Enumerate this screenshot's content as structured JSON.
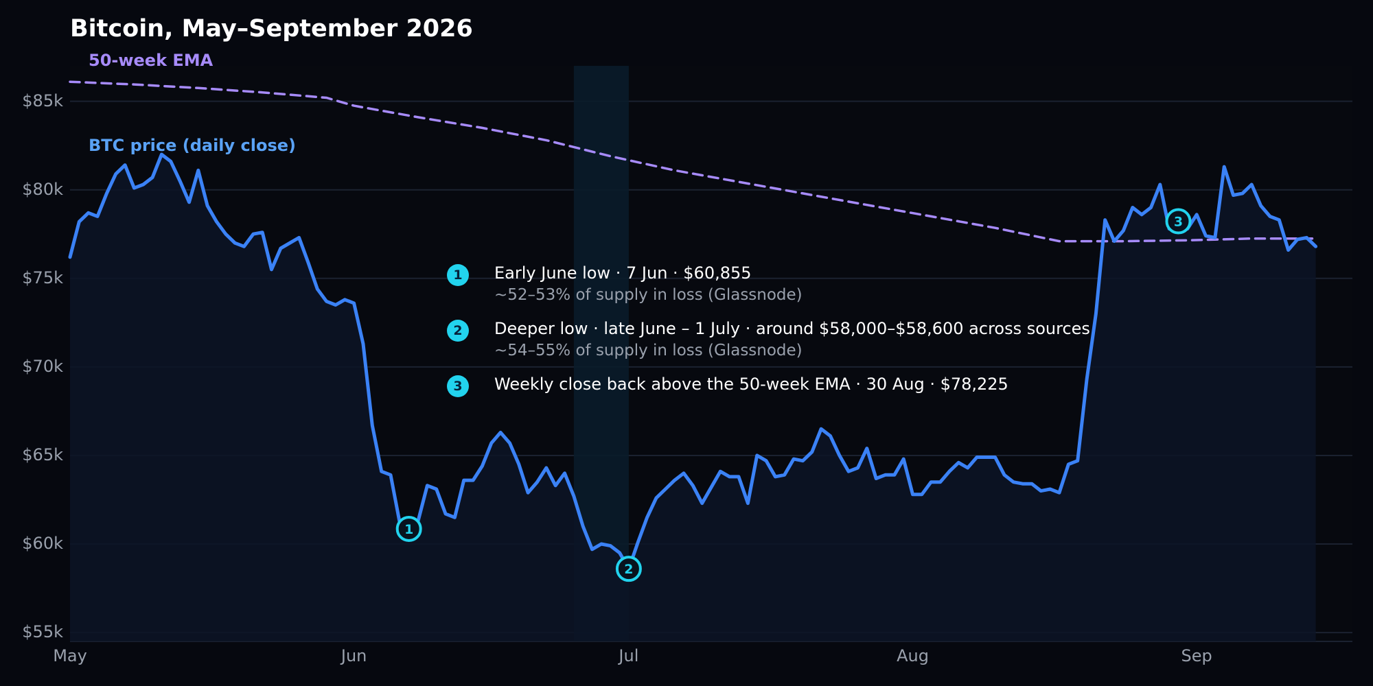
{
  "colors": {
    "background": "#06080f",
    "grid": "#1b2230",
    "btc_line": "#3b82f6",
    "btc_fill": "#0c1426",
    "ema_line": "#a78bfa",
    "highlight_band": "#0a1c2a",
    "marker": "#22d3ee",
    "text": "#ffffff",
    "muted_text": "#9aa1ad"
  },
  "chart_data": {
    "type": "line",
    "title": "Bitcoin, May–September 2026",
    "xlabel": "",
    "ylabel": "",
    "x_axis": {
      "type": "date",
      "range": [
        "2026-05-01",
        "2026-09-17"
      ],
      "ticks": [
        {
          "date": "2026-05-01",
          "label": "May"
        },
        {
          "date": "2026-06-01",
          "label": "Jun"
        },
        {
          "date": "2026-07-01",
          "label": "Jul"
        },
        {
          "date": "2026-08-01",
          "label": "Aug"
        },
        {
          "date": "2026-09-01",
          "label": "Sep"
        }
      ]
    },
    "y_axis": {
      "range": [
        54500,
        87000
      ],
      "ticks": [
        {
          "value": 55000,
          "label": "$55k"
        },
        {
          "value": 60000,
          "label": "$60k"
        },
        {
          "value": 65000,
          "label": "$65k"
        },
        {
          "value": 70000,
          "label": "$70k"
        },
        {
          "value": 75000,
          "label": "$75k"
        },
        {
          "value": 80000,
          "label": "$80k"
        },
        {
          "value": 85000,
          "label": "$85k"
        }
      ]
    },
    "grid": "horizontal",
    "highlight_band": {
      "start": "2026-06-25",
      "end": "2026-07-01"
    },
    "series": [
      {
        "name": "BTC price (daily close)",
        "style": "solid",
        "area_fill": true,
        "points": [
          [
            "2026-05-01",
            76200
          ],
          [
            "2026-05-02",
            78200
          ],
          [
            "2026-05-03",
            78700
          ],
          [
            "2026-05-04",
            78500
          ],
          [
            "2026-05-05",
            79800
          ],
          [
            "2026-05-06",
            80900
          ],
          [
            "2026-05-07",
            81400
          ],
          [
            "2026-05-08",
            80100
          ],
          [
            "2026-05-09",
            80300
          ],
          [
            "2026-05-10",
            80700
          ],
          [
            "2026-05-11",
            82000
          ],
          [
            "2026-05-12",
            81600
          ],
          [
            "2026-05-13",
            80500
          ],
          [
            "2026-05-14",
            79300
          ],
          [
            "2026-05-15",
            81100
          ],
          [
            "2026-05-16",
            79100
          ],
          [
            "2026-05-17",
            78200
          ],
          [
            "2026-05-18",
            77500
          ],
          [
            "2026-05-19",
            77000
          ],
          [
            "2026-05-20",
            76800
          ],
          [
            "2026-05-21",
            77500
          ],
          [
            "2026-05-22",
            77600
          ],
          [
            "2026-05-23",
            75500
          ],
          [
            "2026-05-24",
            76700
          ],
          [
            "2026-05-25",
            77000
          ],
          [
            "2026-05-26",
            77300
          ],
          [
            "2026-05-27",
            75900
          ],
          [
            "2026-05-28",
            74400
          ],
          [
            "2026-05-29",
            73700
          ],
          [
            "2026-05-30",
            73500
          ],
          [
            "2026-05-31",
            73800
          ],
          [
            "2026-06-01",
            73600
          ],
          [
            "2026-06-02",
            71300
          ],
          [
            "2026-06-03",
            66700
          ],
          [
            "2026-06-04",
            64100
          ],
          [
            "2026-06-05",
            63900
          ],
          [
            "2026-06-06",
            61200
          ],
          [
            "2026-06-07",
            60855
          ],
          [
            "2026-06-08",
            61300
          ],
          [
            "2026-06-09",
            63300
          ],
          [
            "2026-06-10",
            63100
          ],
          [
            "2026-06-11",
            61700
          ],
          [
            "2026-06-12",
            61500
          ],
          [
            "2026-06-13",
            63600
          ],
          [
            "2026-06-14",
            63600
          ],
          [
            "2026-06-15",
            64400
          ],
          [
            "2026-06-16",
            65700
          ],
          [
            "2026-06-17",
            66300
          ],
          [
            "2026-06-18",
            65700
          ],
          [
            "2026-06-19",
            64500
          ],
          [
            "2026-06-20",
            62900
          ],
          [
            "2026-06-21",
            63500
          ],
          [
            "2026-06-22",
            64300
          ],
          [
            "2026-06-23",
            63300
          ],
          [
            "2026-06-24",
            64000
          ],
          [
            "2026-06-25",
            62700
          ],
          [
            "2026-06-26",
            61000
          ],
          [
            "2026-06-27",
            59700
          ],
          [
            "2026-06-28",
            60000
          ],
          [
            "2026-06-29",
            59900
          ],
          [
            "2026-06-30",
            59500
          ],
          [
            "2026-07-01",
            58600
          ],
          [
            "2026-07-02",
            60100
          ],
          [
            "2026-07-03",
            61500
          ],
          [
            "2026-07-04",
            62600
          ],
          [
            "2026-07-05",
            63100
          ],
          [
            "2026-07-06",
            63600
          ],
          [
            "2026-07-07",
            64000
          ],
          [
            "2026-07-08",
            63300
          ],
          [
            "2026-07-09",
            62300
          ],
          [
            "2026-07-10",
            63200
          ],
          [
            "2026-07-11",
            64100
          ],
          [
            "2026-07-12",
            63800
          ],
          [
            "2026-07-13",
            63800
          ],
          [
            "2026-07-14",
            62300
          ],
          [
            "2026-07-15",
            65000
          ],
          [
            "2026-07-16",
            64700
          ],
          [
            "2026-07-17",
            63800
          ],
          [
            "2026-07-18",
            63900
          ],
          [
            "2026-07-19",
            64800
          ],
          [
            "2026-07-20",
            64700
          ],
          [
            "2026-07-21",
            65200
          ],
          [
            "2026-07-22",
            66500
          ],
          [
            "2026-07-23",
            66100
          ],
          [
            "2026-07-24",
            65000
          ],
          [
            "2026-07-25",
            64100
          ],
          [
            "2026-07-26",
            64300
          ],
          [
            "2026-07-27",
            65400
          ],
          [
            "2026-07-28",
            63700
          ],
          [
            "2026-07-29",
            63900
          ],
          [
            "2026-07-30",
            63900
          ],
          [
            "2026-07-31",
            64800
          ],
          [
            "2026-08-01",
            62800
          ],
          [
            "2026-08-02",
            62800
          ],
          [
            "2026-08-03",
            63500
          ],
          [
            "2026-08-04",
            63500
          ],
          [
            "2026-08-05",
            64100
          ],
          [
            "2026-08-06",
            64600
          ],
          [
            "2026-08-07",
            64300
          ],
          [
            "2026-08-08",
            64900
          ],
          [
            "2026-08-09",
            64900
          ],
          [
            "2026-08-10",
            64900
          ],
          [
            "2026-08-11",
            63900
          ],
          [
            "2026-08-12",
            63500
          ],
          [
            "2026-08-13",
            63400
          ],
          [
            "2026-08-14",
            63400
          ],
          [
            "2026-08-15",
            63000
          ],
          [
            "2026-08-16",
            63100
          ],
          [
            "2026-08-17",
            62900
          ],
          [
            "2026-08-18",
            64500
          ],
          [
            "2026-08-19",
            64700
          ],
          [
            "2026-08-20",
            69300
          ],
          [
            "2026-08-21",
            73000
          ],
          [
            "2026-08-22",
            78300
          ],
          [
            "2026-08-23",
            77100
          ],
          [
            "2026-08-24",
            77700
          ],
          [
            "2026-08-25",
            79000
          ],
          [
            "2026-08-26",
            78600
          ],
          [
            "2026-08-27",
            79000
          ],
          [
            "2026-08-28",
            80300
          ],
          [
            "2026-08-29",
            77800
          ],
          [
            "2026-08-30",
            78225
          ],
          [
            "2026-08-31",
            77800
          ],
          [
            "2026-09-01",
            78600
          ],
          [
            "2026-09-02",
            77400
          ],
          [
            "2026-09-03",
            77300
          ],
          [
            "2026-09-04",
            81300
          ],
          [
            "2026-09-05",
            79700
          ],
          [
            "2026-09-06",
            79800
          ],
          [
            "2026-09-07",
            80300
          ],
          [
            "2026-09-08",
            79100
          ],
          [
            "2026-09-09",
            78500
          ],
          [
            "2026-09-10",
            78300
          ],
          [
            "2026-09-11",
            76600
          ],
          [
            "2026-09-12",
            77200
          ],
          [
            "2026-09-13",
            77300
          ],
          [
            "2026-09-14",
            76800
          ]
        ]
      },
      {
        "name": "50-week EMA",
        "style": "dashed",
        "points": [
          [
            "2026-05-01",
            86100
          ],
          [
            "2026-05-08",
            85950
          ],
          [
            "2026-05-15",
            85750
          ],
          [
            "2026-05-22",
            85500
          ],
          [
            "2026-05-29",
            85200
          ],
          [
            "2026-06-01",
            84750
          ],
          [
            "2026-06-08",
            84100
          ],
          [
            "2026-06-15",
            83500
          ],
          [
            "2026-06-22",
            82800
          ],
          [
            "2026-06-29",
            81900
          ],
          [
            "2026-07-06",
            81100
          ],
          [
            "2026-07-13",
            80450
          ],
          [
            "2026-07-20",
            79800
          ],
          [
            "2026-07-27",
            79150
          ],
          [
            "2026-08-03",
            78500
          ],
          [
            "2026-08-10",
            77850
          ],
          [
            "2026-08-17",
            77100
          ],
          [
            "2026-08-24",
            77100
          ],
          [
            "2026-08-31",
            77150
          ],
          [
            "2026-09-07",
            77250
          ],
          [
            "2026-09-14",
            77250
          ]
        ]
      }
    ],
    "markers": [
      {
        "id": "1",
        "date": "2026-06-07",
        "value": 60855
      },
      {
        "id": "2",
        "date": "2026-07-01",
        "value": 58600
      },
      {
        "id": "3",
        "date": "2026-08-30",
        "value": 78225
      }
    ],
    "annotations": [
      {
        "marker": "1",
        "text": "Early June low · 7 Jun · $60,855",
        "sub": "~52–53% of supply in loss (Glassnode)"
      },
      {
        "marker": "2",
        "text": "Deeper low · late June – 1 July · around $58,000–$58,600 across sources",
        "sub": "~54–55% of supply in loss (Glassnode)"
      },
      {
        "marker": "3",
        "text": "Weekly close back above the 50-week EMA · 30 Aug · $78,225",
        "sub": ""
      }
    ]
  }
}
